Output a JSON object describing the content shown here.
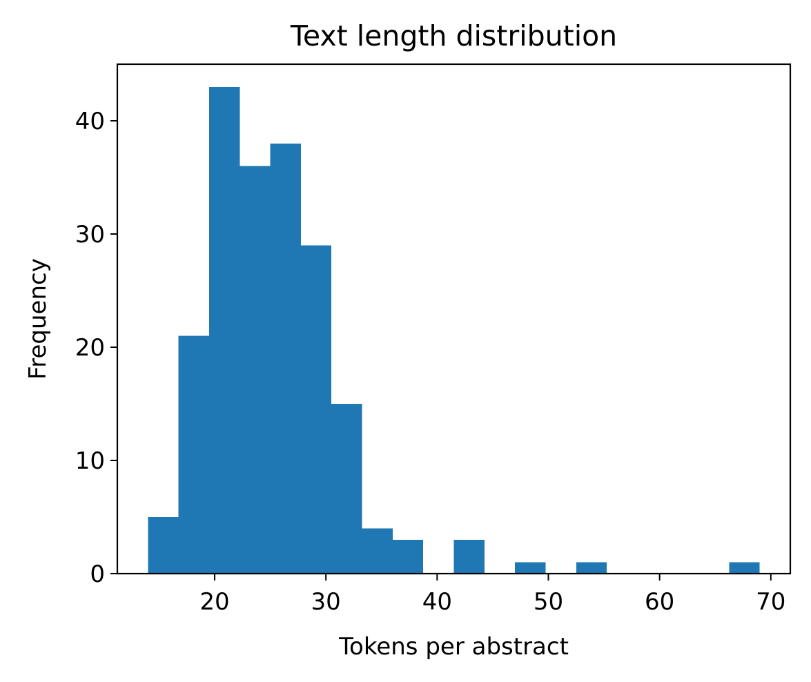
{
  "chart_data": {
    "type": "bar",
    "title": "Text length distribution",
    "xlabel": "Tokens per abstract",
    "ylabel": "Frequency",
    "bin_edges": [
      14.0,
      16.75,
      19.5,
      22.25,
      25.0,
      27.75,
      30.5,
      33.25,
      36.0,
      38.75,
      41.5,
      44.25,
      47.0,
      49.75,
      52.5,
      55.25,
      58.0,
      60.75,
      63.5,
      66.25,
      69.0
    ],
    "values": [
      5,
      21,
      43,
      36,
      38,
      29,
      15,
      4,
      3,
      0,
      3,
      0,
      1,
      0,
      1,
      0,
      0,
      0,
      0,
      1
    ],
    "xlim": [
      11.25,
      71.75
    ],
    "ylim": [
      0,
      45
    ],
    "xticks": [
      20,
      30,
      40,
      50,
      60,
      70
    ],
    "yticks": [
      0,
      10,
      20,
      30,
      40
    ],
    "bar_color": "#1f77b4",
    "grid": false,
    "legend": "none"
  }
}
